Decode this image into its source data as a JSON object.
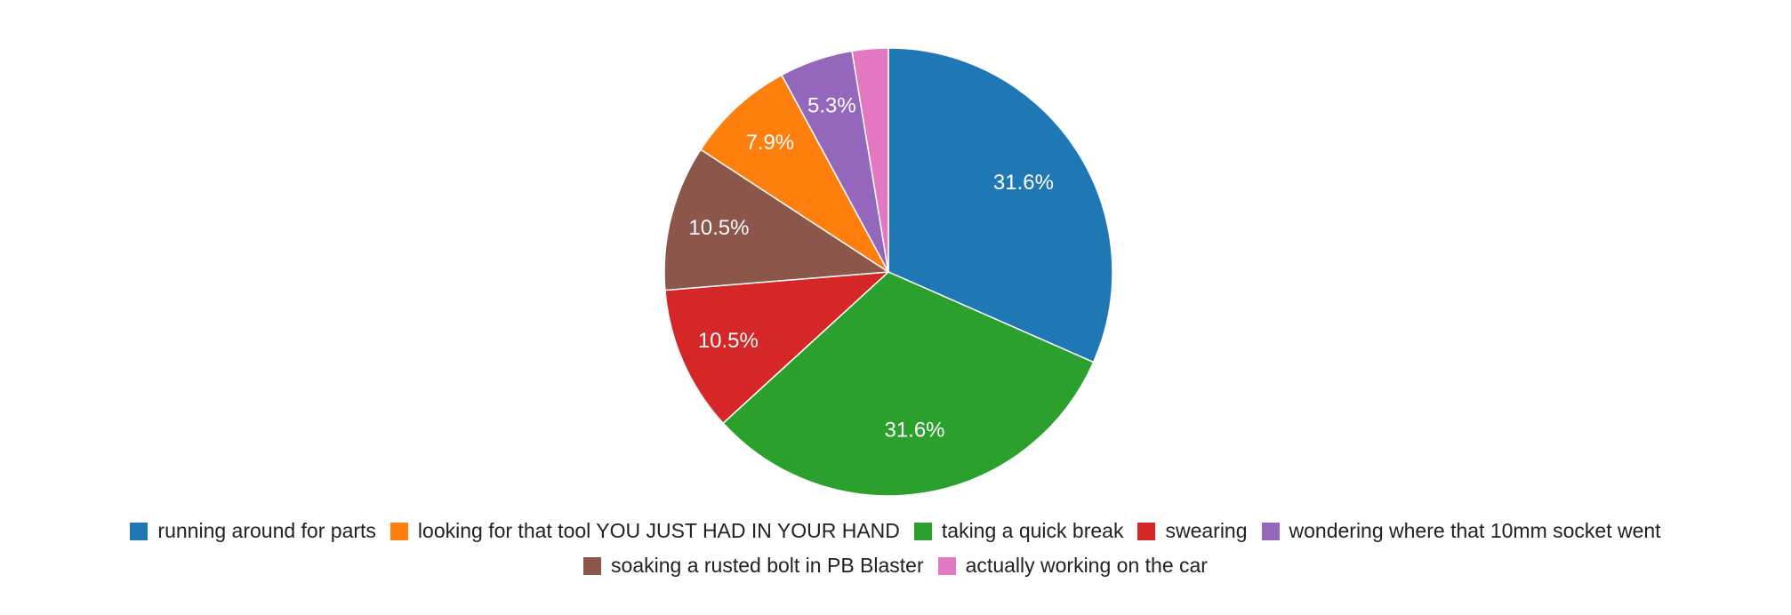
{
  "chart_data": {
    "type": "pie",
    "categories": [
      "running around for parts",
      "looking for that tool YOU JUST HAD IN YOUR HAND",
      "taking a quick break",
      "swearing",
      "wondering where that 10mm socket went",
      "soaking a rusted bolt in PB Blaster",
      "actually working on the car"
    ],
    "values": [
      31.6,
      7.9,
      31.6,
      10.5,
      5.3,
      10.5,
      2.6
    ],
    "value_labels": [
      "31.6%",
      "7.9%",
      "31.6%",
      "10.5%",
      "5.3%",
      "10.5%",
      null
    ],
    "colors": [
      "#1f77b4",
      "#ff7f0e",
      "#2ca02c",
      "#d62728",
      "#9467bd",
      "#8c564b",
      "#e377c2"
    ]
  }
}
